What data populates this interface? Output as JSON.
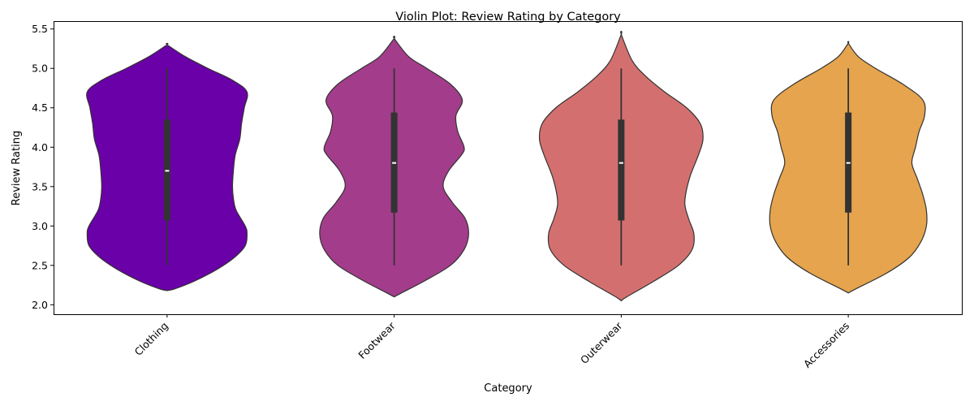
{
  "chart_data": {
    "type": "violin",
    "title": "Violin Plot: Review Rating by Category",
    "xlabel": "Category",
    "ylabel": "Review Rating",
    "ylim": [
      1.88,
      5.6
    ],
    "yticks": [
      2.0,
      2.5,
      3.0,
      3.5,
      4.0,
      4.5,
      5.0,
      5.5
    ],
    "ytick_labels": [
      "2.0",
      "2.5",
      "3.0",
      "3.5",
      "4.0",
      "4.5",
      "5.0",
      "5.5"
    ],
    "categories": [
      "Clothing",
      "Footwear",
      "Outerwear",
      "Accessories"
    ],
    "grid": false,
    "legend": false,
    "series": [
      {
        "category": "Clothing",
        "color": "#6a00a8",
        "min": 2.5,
        "q1": 3.07,
        "median": 3.7,
        "q3": 4.35,
        "max": 5.0,
        "density": [
          [
            2.18,
            0.0
          ],
          [
            2.2,
            0.08
          ],
          [
            2.3,
            0.3
          ],
          [
            2.45,
            0.55
          ],
          [
            2.6,
            0.74
          ],
          [
            2.75,
            0.86
          ],
          [
            2.9,
            0.88
          ],
          [
            3.0,
            0.86
          ],
          [
            3.2,
            0.76
          ],
          [
            3.35,
            0.73
          ],
          [
            3.5,
            0.72
          ],
          [
            3.7,
            0.73
          ],
          [
            3.9,
            0.75
          ],
          [
            4.1,
            0.8
          ],
          [
            4.3,
            0.82
          ],
          [
            4.5,
            0.85
          ],
          [
            4.7,
            0.88
          ],
          [
            4.85,
            0.72
          ],
          [
            5.0,
            0.45
          ],
          [
            5.15,
            0.2
          ],
          [
            5.3,
            0.0
          ]
        ]
      },
      {
        "category": "Footwear",
        "color": "#a33c8b",
        "min": 2.5,
        "q1": 3.17,
        "median": 3.8,
        "q3": 4.44,
        "max": 5.0,
        "density": [
          [
            2.1,
            0.0
          ],
          [
            2.15,
            0.08
          ],
          [
            2.3,
            0.33
          ],
          [
            2.5,
            0.62
          ],
          [
            2.7,
            0.77
          ],
          [
            2.9,
            0.82
          ],
          [
            3.1,
            0.78
          ],
          [
            3.3,
            0.64
          ],
          [
            3.5,
            0.54
          ],
          [
            3.7,
            0.6
          ],
          [
            3.9,
            0.74
          ],
          [
            4.0,
            0.77
          ],
          [
            4.2,
            0.7
          ],
          [
            4.4,
            0.68
          ],
          [
            4.6,
            0.75
          ],
          [
            4.8,
            0.62
          ],
          [
            5.0,
            0.36
          ],
          [
            5.15,
            0.16
          ],
          [
            5.38,
            0.0
          ]
        ]
      },
      {
        "category": "Outerwear",
        "color": "#d3706f",
        "min": 2.5,
        "q1": 3.07,
        "median": 3.8,
        "q3": 4.35,
        "max": 5.0,
        "density": [
          [
            2.05,
            0.0
          ],
          [
            2.1,
            0.06
          ],
          [
            2.3,
            0.36
          ],
          [
            2.5,
            0.63
          ],
          [
            2.7,
            0.78
          ],
          [
            2.9,
            0.8
          ],
          [
            3.1,
            0.74
          ],
          [
            3.3,
            0.7
          ],
          [
            3.6,
            0.75
          ],
          [
            3.9,
            0.85
          ],
          [
            4.1,
            0.9
          ],
          [
            4.3,
            0.87
          ],
          [
            4.5,
            0.72
          ],
          [
            4.7,
            0.48
          ],
          [
            4.9,
            0.27
          ],
          [
            5.1,
            0.12
          ],
          [
            5.43,
            0.0
          ]
        ]
      },
      {
        "category": "Accessories",
        "color": "#e5a44d",
        "min": 2.5,
        "q1": 3.17,
        "median": 3.8,
        "q3": 4.44,
        "max": 5.0,
        "density": [
          [
            2.15,
            0.0
          ],
          [
            2.2,
            0.08
          ],
          [
            2.4,
            0.42
          ],
          [
            2.6,
            0.67
          ],
          [
            2.8,
            0.8
          ],
          [
            3.0,
            0.86
          ],
          [
            3.2,
            0.86
          ],
          [
            3.4,
            0.82
          ],
          [
            3.6,
            0.76
          ],
          [
            3.8,
            0.7
          ],
          [
            4.0,
            0.74
          ],
          [
            4.2,
            0.78
          ],
          [
            4.4,
            0.84
          ],
          [
            4.6,
            0.82
          ],
          [
            4.8,
            0.6
          ],
          [
            5.0,
            0.3
          ],
          [
            5.15,
            0.11
          ],
          [
            5.32,
            0.0
          ]
        ]
      }
    ]
  }
}
